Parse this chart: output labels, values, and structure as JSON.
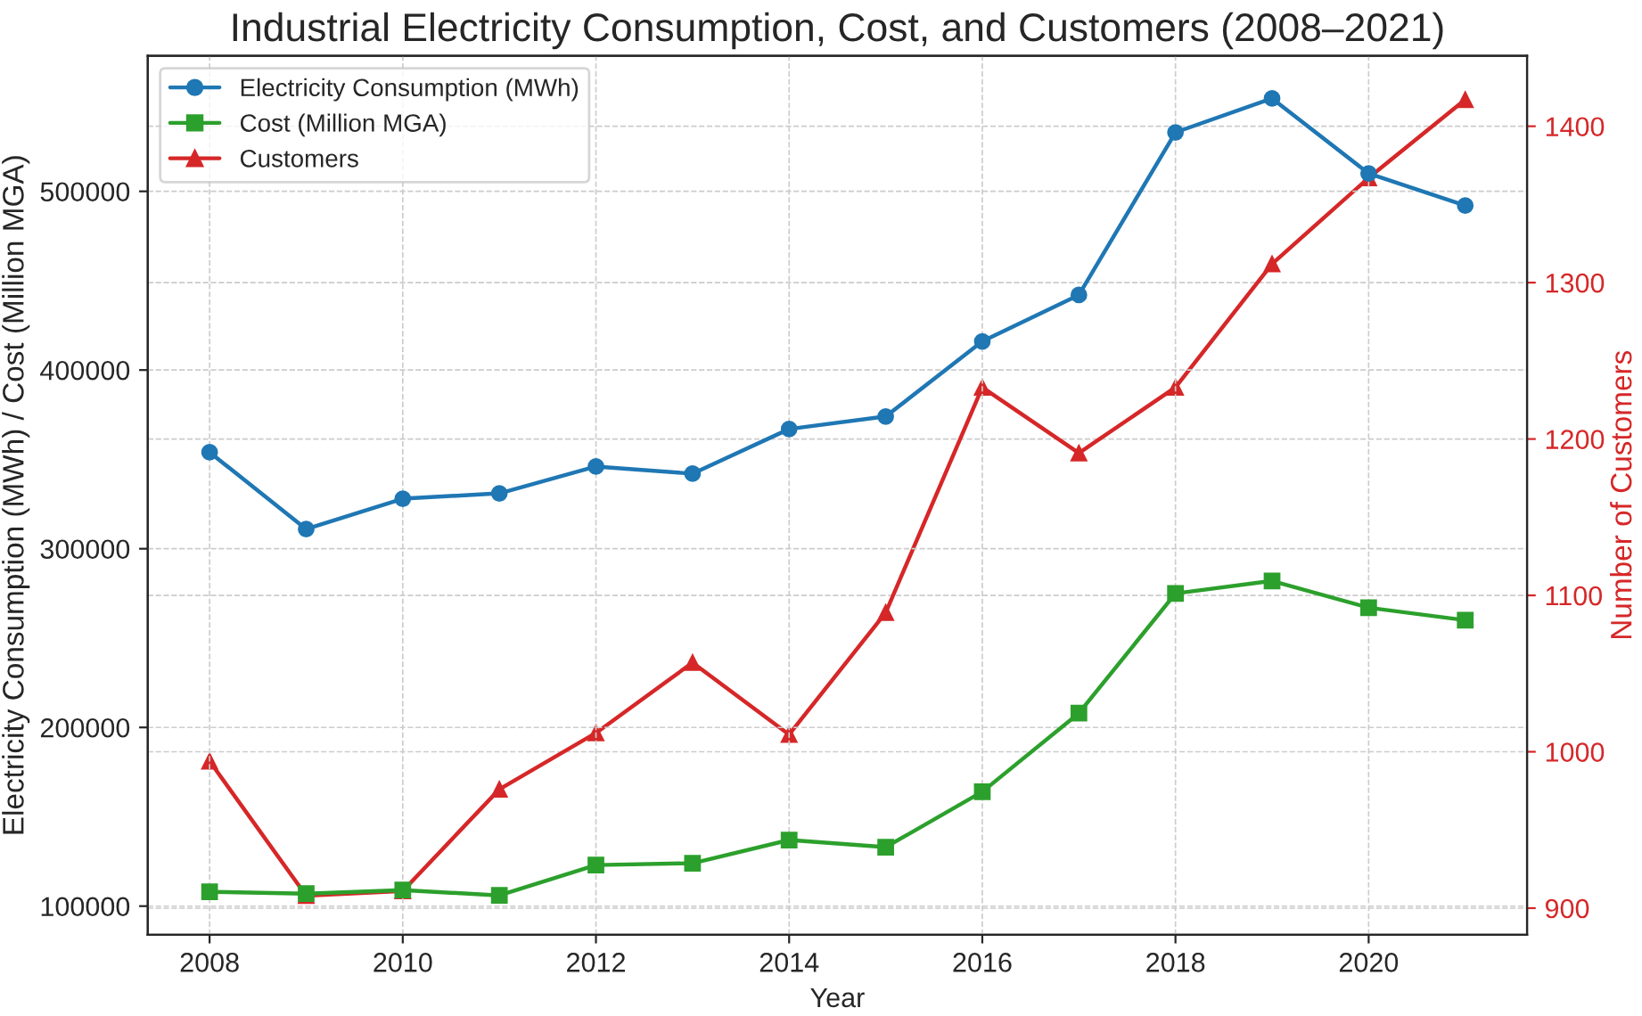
{
  "chart_data": {
    "type": "line",
    "title": "Industrial Electricity Consumption, Cost, and Customers (2008–2021)",
    "xlabel": "Year",
    "ylabel": "Electricity Consumption (MWh) / Cost (Million MGA)",
    "y2label": "Number of Customers",
    "x": [
      2008,
      2009,
      2010,
      2011,
      2012,
      2013,
      2014,
      2015,
      2016,
      2017,
      2018,
      2019,
      2020,
      2021
    ],
    "series": [
      {
        "name": "Electricity Consumption (MWh)",
        "color": "#1f77b4",
        "marker": "circle",
        "values": [
          354000,
          311000,
          328000,
          331000,
          346000,
          342000,
          367000,
          374000,
          416000,
          442000,
          533000,
          552000,
          510000,
          492000
        ]
      },
      {
        "name": "Cost (Million MGA)",
        "color": "#2ca02c",
        "marker": "square",
        "values": [
          108000,
          107000,
          109000,
          106000,
          123000,
          124000,
          137000,
          133000,
          164000,
          208000,
          275000,
          282000,
          267000,
          260000
        ]
      },
      {
        "name": "Customers",
        "color": "#d62728",
        "marker": "triangle",
        "axis": "y2",
        "values": [
          994,
          908,
          911,
          976,
          1012,
          1057,
          1011,
          1089,
          1233,
          1191,
          1233,
          1312,
          1367,
          1417
        ]
      }
    ],
    "xlim": [
      2007.36,
      2021.64
    ],
    "xticks": [
      2008,
      2010,
      2012,
      2014,
      2016,
      2018,
      2020
    ],
    "ylim": [
      84000,
      575800
    ],
    "yticks": [
      100000,
      200000,
      300000,
      400000,
      500000
    ],
    "y2lim": [
      883,
      1445
    ],
    "y2ticks": [
      900,
      1000,
      1100,
      1200,
      1300,
      1400
    ],
    "grid": true,
    "legend": "top left",
    "line_style": "solid"
  }
}
